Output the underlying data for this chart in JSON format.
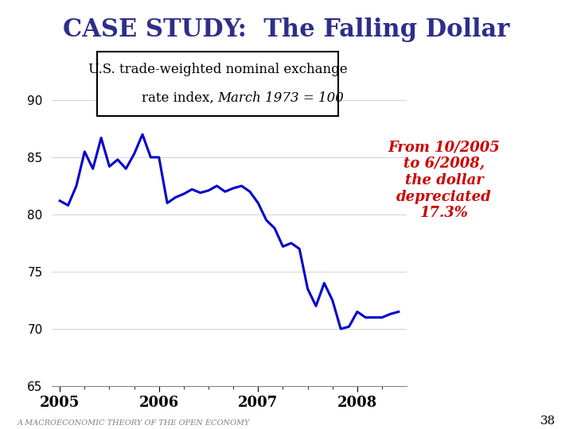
{
  "title": "CASE STUDY:  The Falling Dollar",
  "title_color": "#2E2E8B",
  "title_fontsize": 22,
  "annotation_text": "From 10/2005\nto 6/2008,\nthe dollar\ndepreciated\n17.3%",
  "annotation_color": "#CC0000",
  "annotation_fontsize": 13,
  "label_line1": "U.S. trade-weighted nominal exchange",
  "label_line2": "rate index, ",
  "label_italic": "March 1973 = 100",
  "label_fontsize": 12,
  "line_color": "#0000CC",
  "line_width": 2.2,
  "footer_text": "A MACROECONOMIC THEORY OF THE OPEN ECONOMY",
  "footer_page": "38",
  "ylim": [
    65,
    92
  ],
  "yticks": [
    65,
    70,
    75,
    80,
    85,
    90
  ],
  "x_labels": [
    "2005",
    "2006",
    "2007",
    "2008"
  ],
  "background_color": "#FFFFFF",
  "x_data": [
    0,
    1,
    2,
    3,
    4,
    5,
    6,
    7,
    8,
    9,
    10,
    11,
    12,
    13,
    14,
    15,
    16,
    17,
    18,
    19,
    20,
    21,
    22,
    23,
    24,
    25,
    26,
    27,
    28,
    29,
    30,
    31,
    32,
    33,
    34,
    35,
    36,
    37,
    38,
    39,
    40,
    41
  ],
  "y_data": [
    81.2,
    80.8,
    82.5,
    85.5,
    84.0,
    86.7,
    84.2,
    84.8,
    84.0,
    85.3,
    87.0,
    85.0,
    85.0,
    81.0,
    81.5,
    81.8,
    82.2,
    81.9,
    82.1,
    82.5,
    82.0,
    82.3,
    82.5,
    82.0,
    81.0,
    79.5,
    78.8,
    77.2,
    77.5,
    77.0,
    73.5,
    72.0,
    74.0,
    72.5,
    70.0,
    70.2,
    71.5,
    71.0,
    71.0,
    71.0,
    71.3,
    71.5
  ],
  "x_tick_positions": [
    0,
    12,
    24,
    36
  ],
  "x_minor_positions": [
    3,
    6,
    9,
    15,
    18,
    21,
    27,
    30,
    33,
    39
  ]
}
